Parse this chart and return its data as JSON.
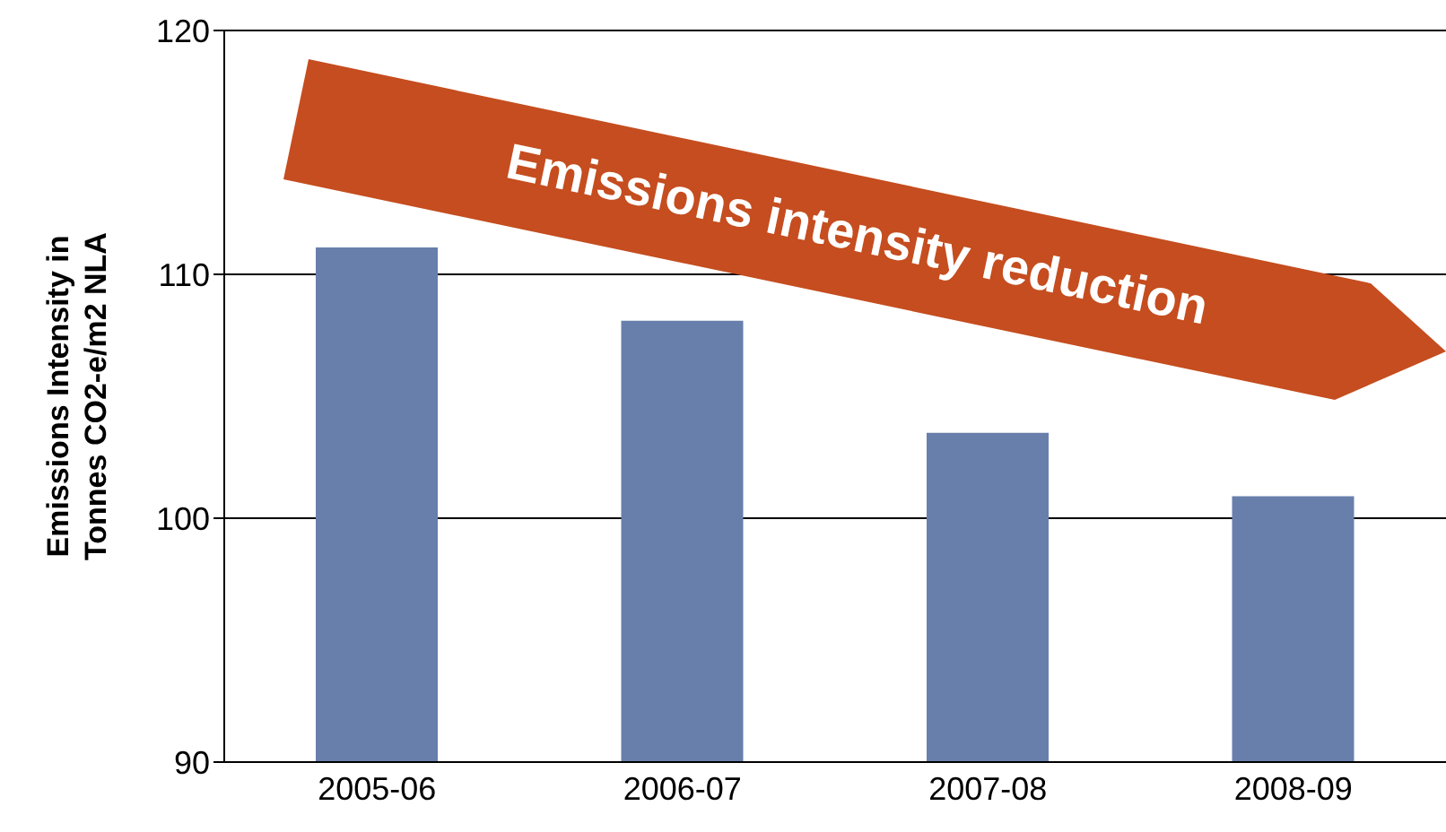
{
  "chart_data": {
    "type": "bar",
    "ylabel": "Emissions Intensity in Tonnes CO2-e/m2 NLA",
    "categories": [
      "2005-06",
      "2006-07",
      "2007-08",
      "2008-09"
    ],
    "values": [
      111.1,
      108.1,
      103.5,
      100.9
    ],
    "color": "#687fab",
    "ylim": [
      90,
      120
    ],
    "yticks": [
      90,
      100,
      110,
      120
    ],
    "grid": "y",
    "annotations": [
      "Emissions intensity reduction"
    ]
  }
}
